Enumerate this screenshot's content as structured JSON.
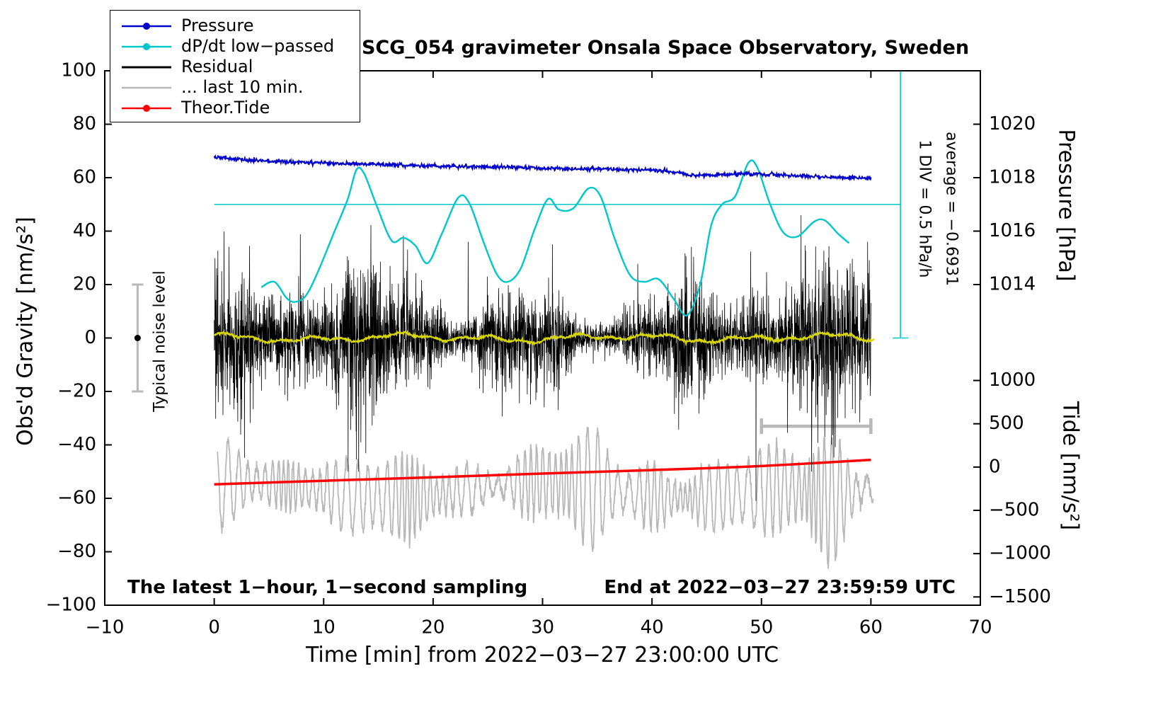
{
  "title": "SCG_054 gravimeter Onsala Space Observatory, Sweden",
  "xlabel": "Time [min] from 2022−03−27 23:00:00 UTC",
  "ylabel_left": "Obs'd Gravity [nm/s²]",
  "ylabel_pressure": "Pressure [hPa]",
  "ylabel_tide": "Tide [nm/s²]",
  "notes": {
    "sampling": "The latest 1−hour, 1−second sampling",
    "end_time": "End at 2022−03−27 23:59:59 UTC",
    "div_scale": "1 DIV = 0.5 hPa/h",
    "average": "average = −0.6931",
    "noise_label": "Typical noise level"
  },
  "legend": {
    "items": [
      {
        "label": "Pressure",
        "color": "#0000cd",
        "marker": true,
        "thick": 2.5
      },
      {
        "label": "dP/dt low−passed",
        "color": "#00c8c8",
        "marker": true,
        "thick": 2.5
      },
      {
        "label": "Residual",
        "color": "#000000",
        "marker": false,
        "thick": 3
      },
      {
        "label": "... last 10 min.",
        "color": "#b8b8b8",
        "marker": false,
        "thick": 2.5
      },
      {
        "label": "Theor.Tide",
        "color": "#ff0000",
        "marker": true,
        "thick": 2.5
      }
    ]
  },
  "chart_data": {
    "type": "line",
    "title": "SCG_054 gravimeter Onsala Space Observatory, Sweden",
    "x_axis": {
      "label": "Time [min] from 2022−03−27 23:00:00 UTC",
      "min": -10,
      "max": 70,
      "ticks": [
        -10,
        0,
        10,
        20,
        30,
        40,
        50,
        60,
        70
      ]
    },
    "y_axis_left": {
      "label": "Obs'd Gravity [nm/s²]",
      "min": -100,
      "max": 100,
      "ticks": [
        -100,
        -80,
        -60,
        -40,
        -20,
        0,
        20,
        40,
        60,
        80,
        100
      ]
    },
    "y_axis_pressure": {
      "label": "Pressure [hPa]",
      "ticks": [
        1020,
        1018,
        1016,
        1014
      ],
      "ref_value": 1018,
      "ref_left_y": 60,
      "left_units_per_hpa": 10
    },
    "y_axis_tide": {
      "label": "Tide [nm/s²]",
      "ticks": [
        1000,
        500,
        0,
        -500,
        -1000,
        -1500
      ],
      "left_y_at_zero": -48.3,
      "left_units_per_tide_unit": 0.0324
    },
    "series": {
      "pressure": {
        "name": "Pressure",
        "color": "#0000cd",
        "units": "hPa",
        "points": [
          [
            0,
            1018.76
          ],
          [
            2,
            1018.7
          ],
          [
            4,
            1018.64
          ],
          [
            6,
            1018.6
          ],
          [
            8,
            1018.58
          ],
          [
            10,
            1018.56
          ],
          [
            12,
            1018.52
          ],
          [
            14,
            1018.5
          ],
          [
            16,
            1018.48
          ],
          [
            18,
            1018.46
          ],
          [
            20,
            1018.44
          ],
          [
            22,
            1018.42
          ],
          [
            24,
            1018.4
          ],
          [
            26,
            1018.4
          ],
          [
            28,
            1018.38
          ],
          [
            30,
            1018.36
          ],
          [
            32,
            1018.34
          ],
          [
            34,
            1018.32
          ],
          [
            36,
            1018.32
          ],
          [
            38,
            1018.3
          ],
          [
            40,
            1018.28
          ],
          [
            42,
            1018.22
          ],
          [
            43.5,
            1018.1
          ],
          [
            45,
            1018.08
          ],
          [
            47,
            1018.12
          ],
          [
            49,
            1018.16
          ],
          [
            50,
            1018.14
          ],
          [
            52,
            1018.1
          ],
          [
            54,
            1018.06
          ],
          [
            56,
            1018.02
          ],
          [
            58,
            1018.0
          ],
          [
            60,
            1017.98
          ]
        ],
        "average_dpdt_hpa_per_h": -0.6931
      },
      "dpdt_lowpassed": {
        "name": "dP/dt low−passed",
        "color": "#00c8c8",
        "units": "left axis nm/s² scale",
        "points": [
          [
            4.3,
            19
          ],
          [
            5.5,
            21
          ],
          [
            6.6,
            15
          ],
          [
            7.4,
            13.5
          ],
          [
            8.4,
            16
          ],
          [
            9.5,
            25
          ],
          [
            11,
            40
          ],
          [
            12.2,
            52
          ],
          [
            13,
            63
          ],
          [
            13.7,
            61.5
          ],
          [
            14.8,
            50
          ],
          [
            16.2,
            36.5
          ],
          [
            17.3,
            37.5
          ],
          [
            18.4,
            34.5
          ],
          [
            19.5,
            28
          ],
          [
            20.8,
            39
          ],
          [
            22.3,
            52.5
          ],
          [
            23.3,
            50.5
          ],
          [
            24.6,
            36
          ],
          [
            25.8,
            24
          ],
          [
            26.8,
            21
          ],
          [
            28,
            26
          ],
          [
            29.3,
            41
          ],
          [
            30.5,
            52
          ],
          [
            31.5,
            48
          ],
          [
            32.8,
            48.5
          ],
          [
            34.2,
            56
          ],
          [
            35.3,
            53
          ],
          [
            36.6,
            37
          ],
          [
            38,
            23.5
          ],
          [
            39.3,
            21
          ],
          [
            40.6,
            22
          ],
          [
            42,
            14.5
          ],
          [
            43.2,
            8.5
          ],
          [
            44.4,
            20
          ],
          [
            45.4,
            42
          ],
          [
            46.4,
            50
          ],
          [
            47.6,
            53
          ],
          [
            48.8,
            65.5
          ],
          [
            49.6,
            64
          ],
          [
            50.8,
            50
          ],
          [
            52,
            39.5
          ],
          [
            53.3,
            38
          ],
          [
            54.8,
            43.5
          ],
          [
            55.8,
            44
          ],
          [
            57,
            39
          ],
          [
            58,
            35.5
          ]
        ]
      },
      "residual": {
        "name": "Residual",
        "color": "#000000",
        "units": "nm/s²",
        "x_from": 0,
        "x_to": 60,
        "sampling_seconds": 1,
        "mean": 0,
        "typical_amplitude": 20,
        "forced_extremes": [
          [
            13.4,
            -39
          ],
          [
            23.2,
            36
          ],
          [
            30.9,
            35
          ],
          [
            49.5,
            -61
          ],
          [
            59.7,
            36
          ]
        ]
      },
      "residual_lowpassed": {
        "name": "Residual low-passed",
        "color": "#d8d800",
        "units": "nm/s²",
        "mean": 0,
        "amplitude": 2
      },
      "last_10_min": {
        "name": "... last 10 min.",
        "color": "#b8b8b8",
        "units": "nm/s²",
        "x_from": 0.3,
        "x_to": 60.2,
        "center": -57,
        "typical_range": [
          -75,
          -40
        ],
        "extreme_min": -100,
        "upper_bound": -33.5
      },
      "theor_tide": {
        "name": "Theor.Tide",
        "color": "#ff0000",
        "units": "tide nm/s²",
        "points": [
          [
            0,
            -200
          ],
          [
            10,
            -158
          ],
          [
            20,
            -118
          ],
          [
            30,
            -75
          ],
          [
            40,
            -35
          ],
          [
            50,
            12
          ],
          [
            60,
            84
          ]
        ]
      }
    },
    "annotations": {
      "reference_line_left_y": 50,
      "scale_bar": {
        "x": 62.7,
        "left_y_from": 0,
        "left_y_to": 100,
        "color": "#00c8c8",
        "label": "1 DIV = 0.5 hPa/h",
        "average_label": "average = −0.6931"
      },
      "ten_min_bar": {
        "x_from": 50,
        "x_to": 60,
        "left_y": -33,
        "color": "#b8b8b8"
      },
      "noise_bar": {
        "x": -7,
        "center_y": 0,
        "half_range": 20,
        "label": "Typical noise level",
        "bar_color": "#b8b8b8",
        "dot_color": "#000000"
      }
    }
  }
}
